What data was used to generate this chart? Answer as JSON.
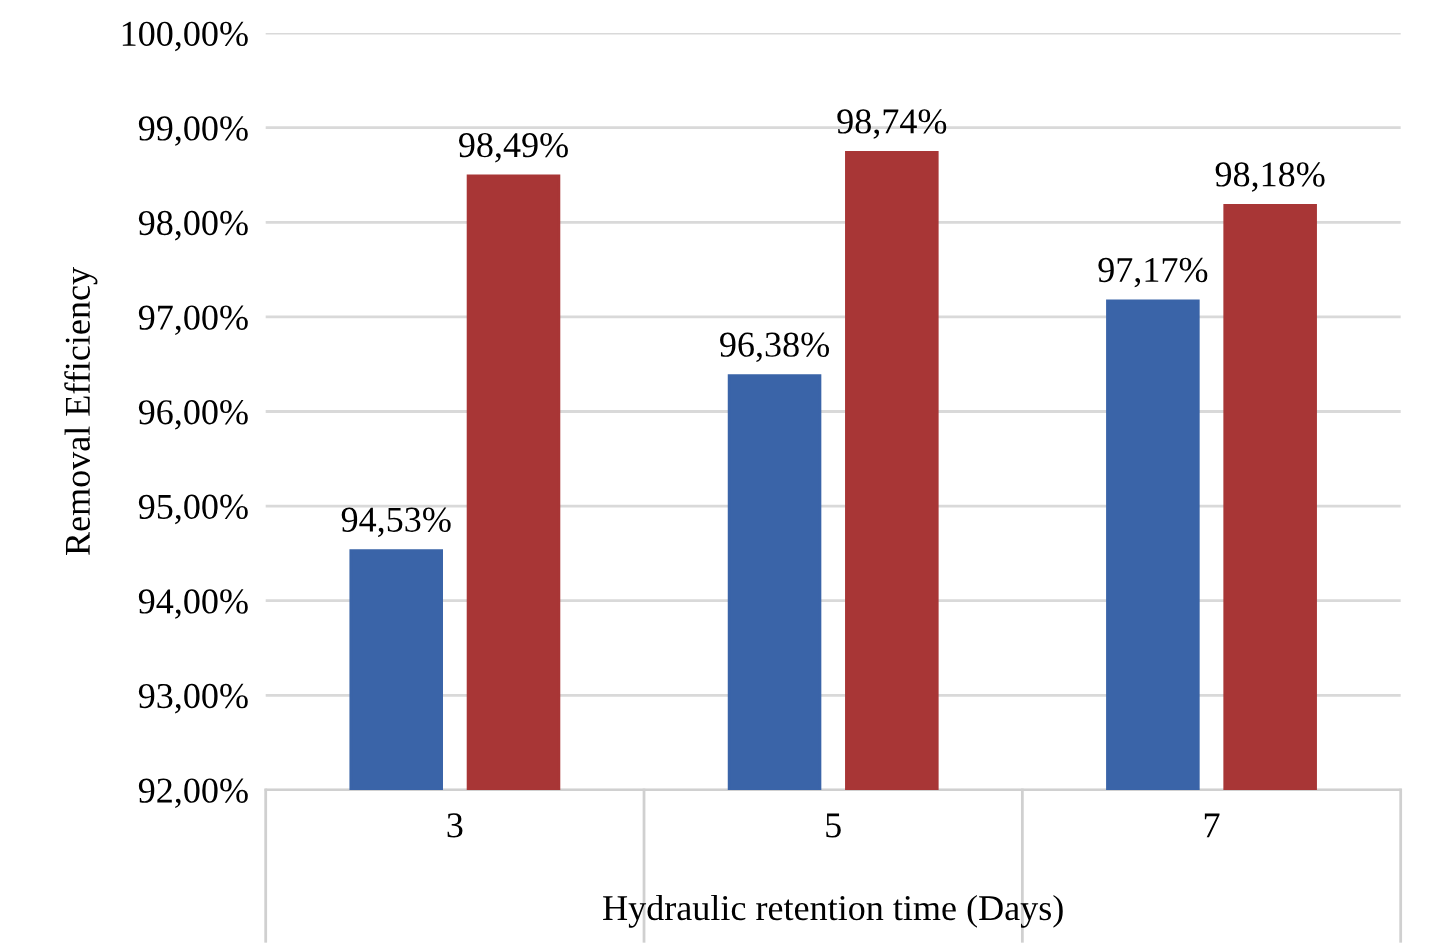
{
  "chart_data": {
    "type": "bar",
    "xlabel": "Hydraulic retention time (Days)",
    "ylabel": "Removal Efficiency",
    "categories": [
      "3",
      "5",
      "7"
    ],
    "series": [
      {
        "color": "#3a64a8",
        "values": [
          94.53,
          96.38,
          97.17
        ],
        "value_labels": [
          "94,53%",
          "96,38%",
          "97,17%"
        ]
      },
      {
        "color": "#a83636",
        "values": [
          98.49,
          98.74,
          98.18
        ],
        "value_labels": [
          "98,49%",
          "98,74%",
          "98,18%"
        ]
      }
    ],
    "ylim": [
      92,
      100
    ],
    "yticks": [
      {
        "value": 92,
        "label": "92,00%"
      },
      {
        "value": 93,
        "label": "93,00%"
      },
      {
        "value": 94,
        "label": "94,00%"
      },
      {
        "value": 95,
        "label": "95,00%"
      },
      {
        "value": 96,
        "label": "96,00%"
      },
      {
        "value": 97,
        "label": "97,00%"
      },
      {
        "value": 98,
        "label": "98,00%"
      },
      {
        "value": 99,
        "label": "99,00%"
      },
      {
        "value": 100,
        "label": "100,00%"
      }
    ],
    "grid": "y",
    "legend": false
  }
}
